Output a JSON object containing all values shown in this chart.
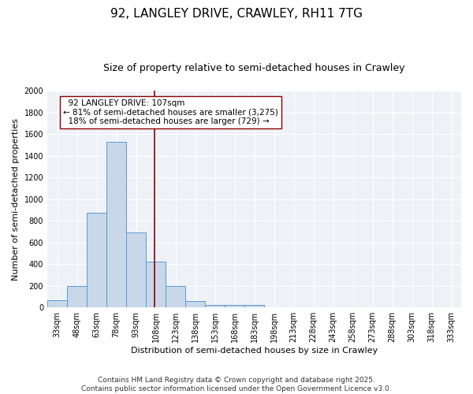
{
  "title": "92, LANGLEY DRIVE, CRAWLEY, RH11 7TG",
  "subtitle": "Size of property relative to semi-detached houses in Crawley",
  "xlabel": "Distribution of semi-detached houses by size in Crawley",
  "ylabel": "Number of semi-detached properties",
  "bin_labels": [
    "33sqm",
    "48sqm",
    "63sqm",
    "78sqm",
    "93sqm",
    "108sqm",
    "123sqm",
    "138sqm",
    "153sqm",
    "168sqm",
    "183sqm",
    "198sqm",
    "213sqm",
    "228sqm",
    "243sqm",
    "258sqm",
    "273sqm",
    "288sqm",
    "303sqm",
    "318sqm",
    "333sqm"
  ],
  "bin_values": [
    70,
    195,
    875,
    1530,
    690,
    420,
    195,
    60,
    25,
    20,
    20,
    0,
    0,
    0,
    0,
    0,
    0,
    0,
    0,
    0,
    0
  ],
  "bar_color": "#c8d8e8",
  "bar_edge_color": "#5b9bd5",
  "vline_color": "#8b0000",
  "annotation_text": "  92 LANGLEY DRIVE: 107sqm\n← 81% of semi-detached houses are smaller (3,275)\n  18% of semi-detached houses are larger (729) →",
  "annotation_box_color": "white",
  "annotation_box_edge": "#8b0000",
  "ylim": [
    0,
    2000
  ],
  "yticks": [
    0,
    200,
    400,
    600,
    800,
    1000,
    1200,
    1400,
    1600,
    1800,
    2000
  ],
  "background_color": "#eef2f7",
  "footer_text": "Contains HM Land Registry data © Crown copyright and database right 2025.\nContains public sector information licensed under the Open Government Licence v3.0.",
  "title_fontsize": 11,
  "subtitle_fontsize": 9,
  "axis_label_fontsize": 8,
  "tick_fontsize": 7,
  "annotation_fontsize": 7.5,
  "footer_fontsize": 6.5
}
